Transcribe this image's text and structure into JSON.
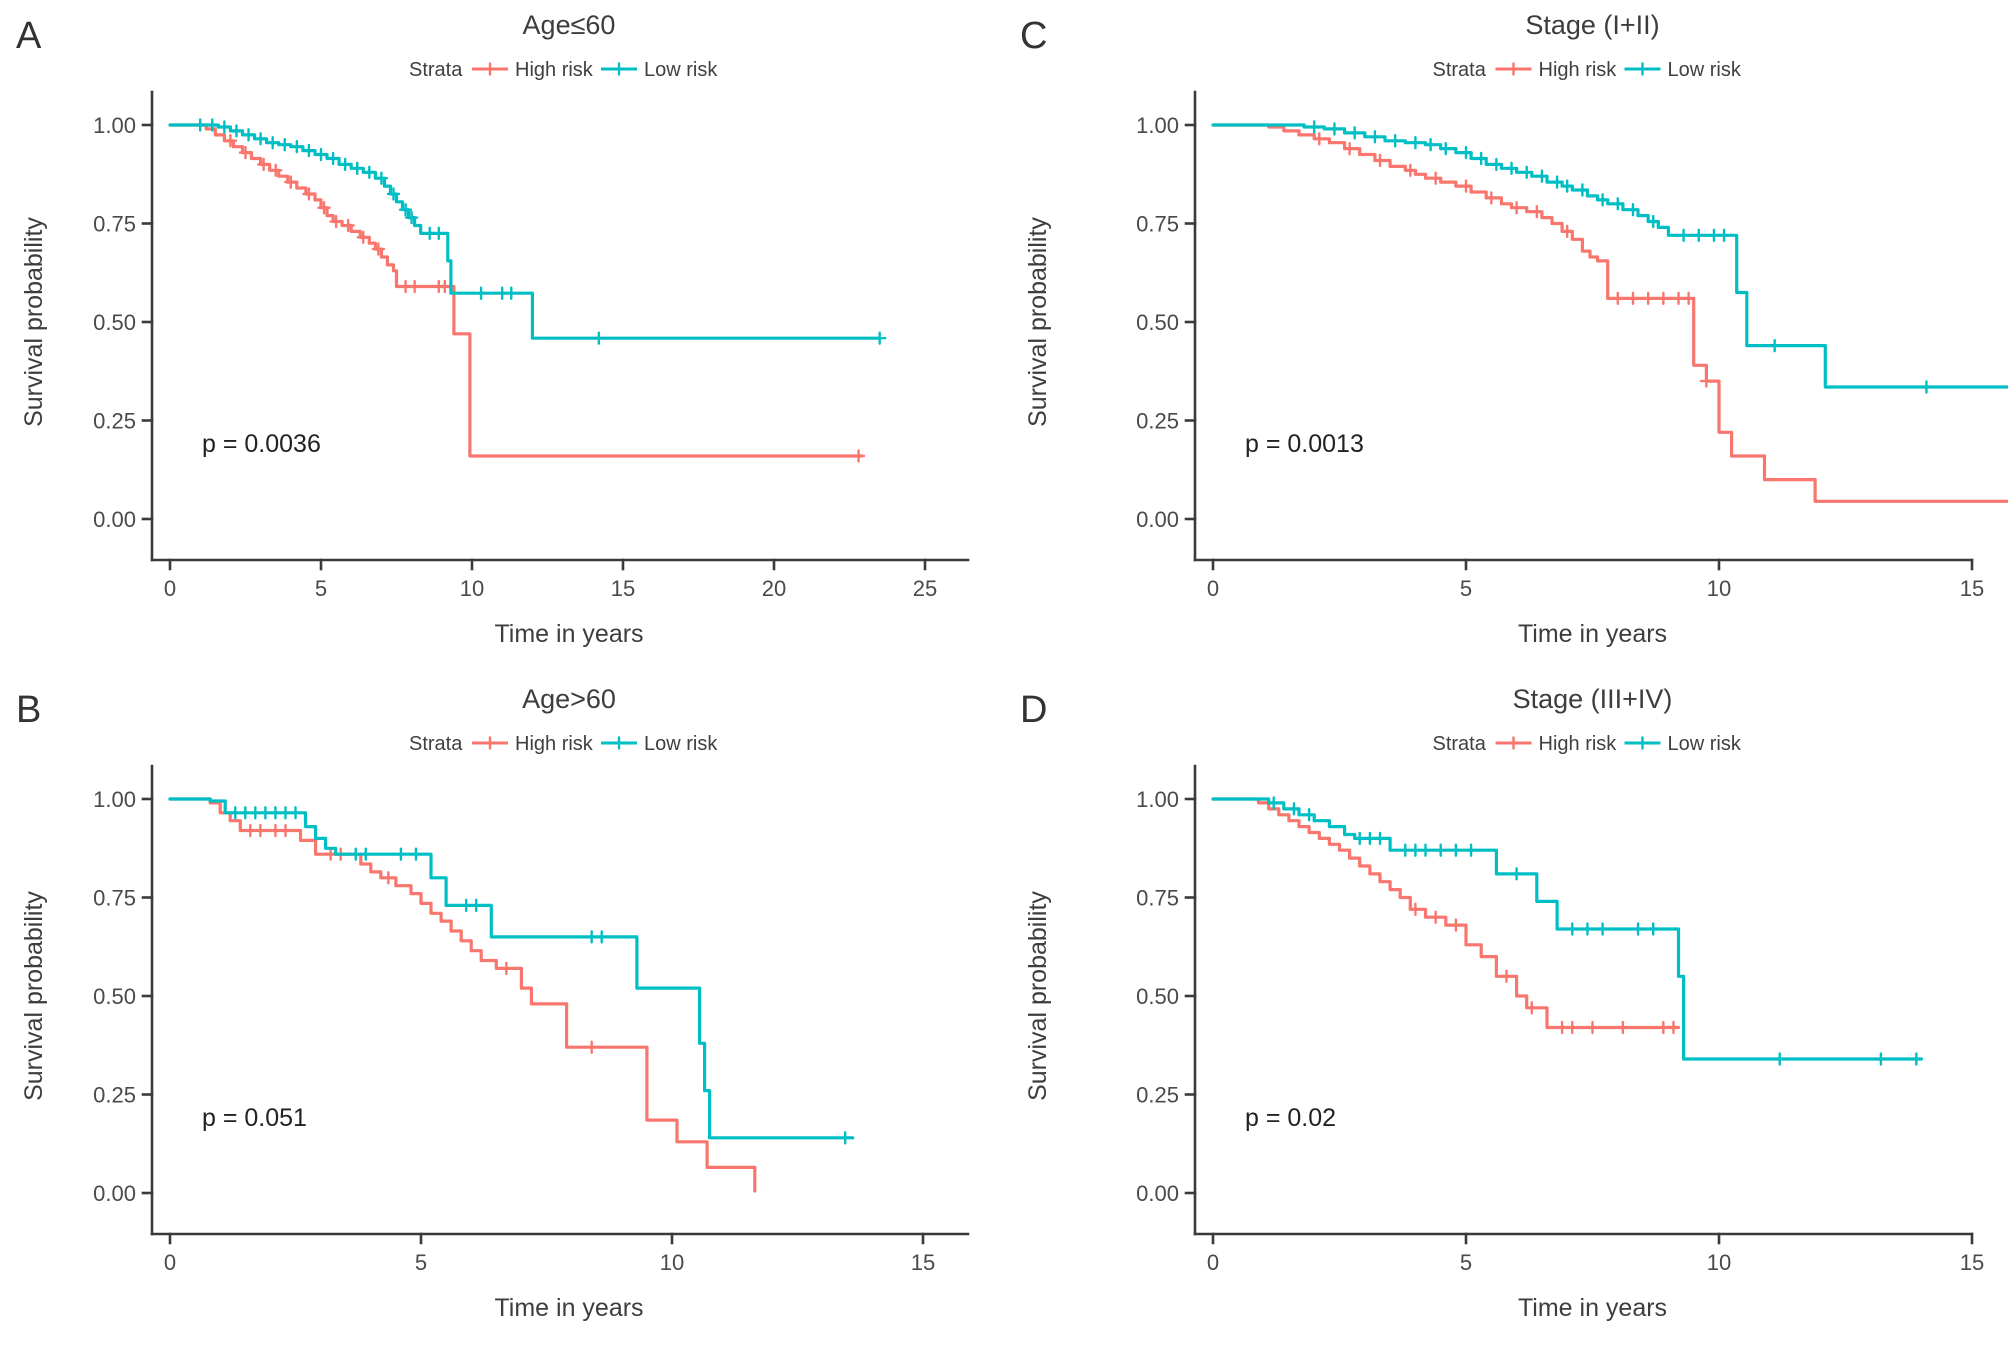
{
  "figure": {
    "background": "#ffffff",
    "strata_label": "Strata",
    "legend_items": [
      {
        "label": "High risk",
        "color": "#f8766d"
      },
      {
        "label": "Low risk",
        "color": "#00bfc4"
      }
    ],
    "axis": {
      "x_label": "Time in years",
      "y_label": "Survival probability",
      "y_ticks": [
        "1.00",
        "0.75",
        "0.50",
        "0.25",
        "0.00"
      ],
      "y_tick_values": [
        1.0,
        0.75,
        0.5,
        0.25,
        0.0
      ],
      "axis_color": "#3a3a3a",
      "text_color": "#404040",
      "tick_text_color": "#4a4a4a"
    }
  },
  "chart_data": [
    {
      "type": "line",
      "km_step": true,
      "panel_letter": "A",
      "title": "Age≤60",
      "p_value_text": "p = 0.0036",
      "x_label": "Time in years",
      "y_label": "Survival probability",
      "x_ticks": [
        0,
        5,
        10,
        15,
        20,
        25
      ],
      "xlim": [
        0,
        26
      ],
      "ylim": [
        0,
        1
      ],
      "legend_position": "top",
      "series": [
        {
          "name": "High risk",
          "color": "#f8766d",
          "steps": [
            [
              0,
              1.0
            ],
            [
              1.2,
              0.99
            ],
            [
              1.5,
              0.975
            ],
            [
              1.8,
              0.96
            ],
            [
              2.1,
              0.945
            ],
            [
              2.4,
              0.93
            ],
            [
              2.7,
              0.915
            ],
            [
              3.0,
              0.9
            ],
            [
              3.3,
              0.885
            ],
            [
              3.6,
              0.87
            ],
            [
              3.9,
              0.855
            ],
            [
              4.2,
              0.84
            ],
            [
              4.5,
              0.825
            ],
            [
              4.8,
              0.81
            ],
            [
              5.0,
              0.79
            ],
            [
              5.2,
              0.77
            ],
            [
              5.4,
              0.755
            ],
            [
              5.7,
              0.745
            ],
            [
              6.0,
              0.73
            ],
            [
              6.3,
              0.715
            ],
            [
              6.6,
              0.7
            ],
            [
              6.8,
              0.685
            ],
            [
              7.0,
              0.665
            ],
            [
              7.2,
              0.645
            ],
            [
              7.4,
              0.63
            ],
            [
              7.5,
              0.59
            ],
            [
              9.4,
              0.47
            ],
            [
              9.93,
              0.16
            ],
            [
              22.9,
              0.16
            ]
          ],
          "censor_times": [
            2.0,
            2.5,
            3.1,
            3.5,
            4.0,
            4.6,
            5.1,
            5.5,
            5.9,
            6.4,
            6.9,
            7.8,
            8.1,
            8.9,
            9.1,
            22.8
          ]
        },
        {
          "name": "Low risk",
          "color": "#00bfc4",
          "steps": [
            [
              0,
              1.0
            ],
            [
              1.6,
              0.995
            ],
            [
              2.0,
              0.985
            ],
            [
              2.4,
              0.975
            ],
            [
              2.8,
              0.965
            ],
            [
              3.2,
              0.955
            ],
            [
              3.6,
              0.95
            ],
            [
              4.0,
              0.945
            ],
            [
              4.4,
              0.935
            ],
            [
              4.8,
              0.925
            ],
            [
              5.2,
              0.915
            ],
            [
              5.6,
              0.9
            ],
            [
              6.0,
              0.89
            ],
            [
              6.4,
              0.88
            ],
            [
              6.8,
              0.865
            ],
            [
              7.1,
              0.845
            ],
            [
              7.3,
              0.825
            ],
            [
              7.5,
              0.805
            ],
            [
              7.7,
              0.785
            ],
            [
              7.9,
              0.765
            ],
            [
              8.1,
              0.745
            ],
            [
              8.3,
              0.725
            ],
            [
              9.2,
              0.655
            ],
            [
              9.3,
              0.573
            ],
            [
              12.0,
              0.459
            ],
            [
              23.5,
              0.459
            ]
          ],
          "censor_times": [
            1.0,
            1.4,
            1.8,
            2.2,
            2.6,
            3.0,
            3.4,
            3.8,
            4.2,
            4.6,
            5.0,
            5.4,
            5.8,
            6.2,
            6.6,
            7.0,
            7.4,
            7.8,
            8.0,
            8.6,
            8.9,
            10.3,
            11.0,
            11.3,
            14.2,
            23.5
          ]
        }
      ]
    },
    {
      "type": "line",
      "km_step": true,
      "panel_letter": "C",
      "title": "Stage (I+II)",
      "p_value_text": "p = 0.0013",
      "x_label": "Time in years",
      "y_label": "Survival probability",
      "x_ticks": [
        0,
        5,
        10,
        15
      ],
      "xlim": [
        0,
        15.7
      ],
      "ylim": [
        0,
        1
      ],
      "legend_position": "top",
      "series": [
        {
          "name": "High risk",
          "color": "#f8766d",
          "steps": [
            [
              0,
              1.0
            ],
            [
              1.1,
              0.995
            ],
            [
              1.4,
              0.985
            ],
            [
              1.7,
              0.975
            ],
            [
              2.0,
              0.965
            ],
            [
              2.3,
              0.955
            ],
            [
              2.6,
              0.94
            ],
            [
              2.9,
              0.925
            ],
            [
              3.2,
              0.91
            ],
            [
              3.5,
              0.895
            ],
            [
              3.8,
              0.885
            ],
            [
              4.0,
              0.875
            ],
            [
              4.2,
              0.865
            ],
            [
              4.5,
              0.855
            ],
            [
              4.8,
              0.845
            ],
            [
              5.1,
              0.83
            ],
            [
              5.4,
              0.815
            ],
            [
              5.7,
              0.8
            ],
            [
              5.9,
              0.79
            ],
            [
              6.2,
              0.78
            ],
            [
              6.5,
              0.765
            ],
            [
              6.7,
              0.75
            ],
            [
              6.9,
              0.73
            ],
            [
              7.1,
              0.71
            ],
            [
              7.3,
              0.68
            ],
            [
              7.45,
              0.665
            ],
            [
              7.6,
              0.655
            ],
            [
              7.8,
              0.56
            ],
            [
              9.5,
              0.39
            ],
            [
              9.75,
              0.35
            ],
            [
              10.0,
              0.22
            ],
            [
              10.25,
              0.16
            ],
            [
              10.9,
              0.1
            ],
            [
              11.9,
              0.045
            ],
            [
              15.7,
              0.045
            ]
          ],
          "censor_times": [
            2.1,
            2.7,
            3.3,
            3.9,
            4.4,
            5.0,
            5.5,
            6.0,
            6.4,
            7.0,
            8.0,
            8.3,
            8.6,
            8.9,
            9.2,
            9.4,
            9.75
          ]
        },
        {
          "name": "Low risk",
          "color": "#00bfc4",
          "steps": [
            [
              0,
              1.0
            ],
            [
              1.8,
              0.995
            ],
            [
              2.2,
              0.99
            ],
            [
              2.6,
              0.98
            ],
            [
              3.0,
              0.97
            ],
            [
              3.4,
              0.96
            ],
            [
              3.8,
              0.955
            ],
            [
              4.2,
              0.95
            ],
            [
              4.5,
              0.94
            ],
            [
              4.8,
              0.93
            ],
            [
              5.1,
              0.915
            ],
            [
              5.4,
              0.9
            ],
            [
              5.7,
              0.89
            ],
            [
              6.0,
              0.88
            ],
            [
              6.3,
              0.87
            ],
            [
              6.6,
              0.855
            ],
            [
              6.9,
              0.845
            ],
            [
              7.1,
              0.835
            ],
            [
              7.4,
              0.82
            ],
            [
              7.6,
              0.81
            ],
            [
              7.8,
              0.8
            ],
            [
              8.1,
              0.785
            ],
            [
              8.4,
              0.77
            ],
            [
              8.6,
              0.755
            ],
            [
              8.8,
              0.74
            ],
            [
              9.0,
              0.72
            ],
            [
              10.35,
              0.575
            ],
            [
              10.55,
              0.44
            ],
            [
              12.1,
              0.335
            ],
            [
              15.7,
              0.335
            ]
          ],
          "censor_times": [
            2.0,
            2.4,
            2.8,
            3.2,
            3.6,
            4.0,
            4.3,
            4.6,
            5.0,
            5.3,
            5.6,
            5.9,
            6.2,
            6.5,
            6.8,
            7.0,
            7.3,
            7.7,
            8.0,
            8.3,
            8.7,
            9.3,
            9.6,
            9.9,
            10.1,
            11.1,
            14.1
          ]
        }
      ]
    },
    {
      "type": "line",
      "km_step": true,
      "panel_letter": "B",
      "title": "Age>60",
      "p_value_text": "p = 0.051",
      "x_label": "Time in years",
      "y_label": "Survival probability",
      "x_ticks": [
        0,
        5,
        10,
        15
      ],
      "xlim": [
        0,
        15.8
      ],
      "ylim": [
        0,
        1
      ],
      "legend_position": "top",
      "series": [
        {
          "name": "High risk",
          "color": "#f8766d",
          "steps": [
            [
              0,
              1.0
            ],
            [
              0.8,
              0.99
            ],
            [
              1.0,
              0.965
            ],
            [
              1.2,
              0.945
            ],
            [
              1.4,
              0.92
            ],
            [
              2.6,
              0.895
            ],
            [
              2.9,
              0.86
            ],
            [
              3.8,
              0.835
            ],
            [
              4.0,
              0.815
            ],
            [
              4.2,
              0.8
            ],
            [
              4.5,
              0.78
            ],
            [
              4.8,
              0.76
            ],
            [
              5.0,
              0.735
            ],
            [
              5.2,
              0.71
            ],
            [
              5.4,
              0.69
            ],
            [
              5.6,
              0.665
            ],
            [
              5.8,
              0.64
            ],
            [
              6.0,
              0.615
            ],
            [
              6.2,
              0.59
            ],
            [
              6.5,
              0.57
            ],
            [
              7.0,
              0.52
            ],
            [
              7.2,
              0.48
            ],
            [
              7.9,
              0.37
            ],
            [
              9.5,
              0.185
            ],
            [
              10.1,
              0.13
            ],
            [
              10.7,
              0.065
            ],
            [
              11.65,
              0.005
            ]
          ],
          "censor_times": [
            1.6,
            1.8,
            2.1,
            2.3,
            3.2,
            3.4,
            4.35,
            6.7,
            8.4
          ]
        },
        {
          "name": "Low risk",
          "color": "#00bfc4",
          "steps": [
            [
              0,
              1.0
            ],
            [
              0.8,
              0.995
            ],
            [
              1.1,
              0.965
            ],
            [
              2.7,
              0.93
            ],
            [
              2.9,
              0.9
            ],
            [
              3.1,
              0.875
            ],
            [
              3.3,
              0.86
            ],
            [
              5.2,
              0.8
            ],
            [
              5.5,
              0.73
            ],
            [
              6.4,
              0.65
            ],
            [
              9.3,
              0.52
            ],
            [
              10.55,
              0.38
            ],
            [
              10.65,
              0.26
            ],
            [
              10.75,
              0.14
            ],
            [
              13.6,
              0.14
            ]
          ],
          "censor_times": [
            1.3,
            1.5,
            1.7,
            1.9,
            2.1,
            2.3,
            2.5,
            3.7,
            3.9,
            4.6,
            4.9,
            5.9,
            6.1,
            8.4,
            8.6,
            13.45
          ]
        }
      ]
    },
    {
      "type": "line",
      "km_step": true,
      "panel_letter": "D",
      "title": "Stage (III+IV)",
      "p_value_text": "p = 0.02",
      "x_label": "Time in years",
      "y_label": "Survival probability",
      "x_ticks": [
        0,
        5,
        10,
        15
      ],
      "xlim": [
        0,
        15.7
      ],
      "ylim": [
        0,
        1
      ],
      "legend_position": "top",
      "series": [
        {
          "name": "High risk",
          "color": "#f8766d",
          "steps": [
            [
              0,
              1.0
            ],
            [
              0.9,
              0.99
            ],
            [
              1.1,
              0.975
            ],
            [
              1.3,
              0.96
            ],
            [
              1.5,
              0.945
            ],
            [
              1.7,
              0.93
            ],
            [
              1.9,
              0.915
            ],
            [
              2.1,
              0.9
            ],
            [
              2.3,
              0.885
            ],
            [
              2.5,
              0.87
            ],
            [
              2.7,
              0.85
            ],
            [
              2.9,
              0.83
            ],
            [
              3.1,
              0.81
            ],
            [
              3.3,
              0.79
            ],
            [
              3.5,
              0.77
            ],
            [
              3.7,
              0.75
            ],
            [
              3.9,
              0.72
            ],
            [
              4.2,
              0.7
            ],
            [
              4.6,
              0.68
            ],
            [
              5.0,
              0.63
            ],
            [
              5.3,
              0.6
            ],
            [
              5.6,
              0.55
            ],
            [
              6.0,
              0.5
            ],
            [
              6.2,
              0.47
            ],
            [
              6.6,
              0.42
            ],
            [
              9.2,
              0.42
            ]
          ],
          "censor_times": [
            4.0,
            4.4,
            4.8,
            5.8,
            6.3,
            6.9,
            7.1,
            7.5,
            8.1,
            8.9,
            9.1
          ]
        },
        {
          "name": "Low risk",
          "color": "#00bfc4",
          "steps": [
            [
              0,
              1.0
            ],
            [
              1.1,
              0.99
            ],
            [
              1.4,
              0.975
            ],
            [
              1.7,
              0.96
            ],
            [
              2.0,
              0.945
            ],
            [
              2.3,
              0.93
            ],
            [
              2.6,
              0.91
            ],
            [
              2.8,
              0.9
            ],
            [
              3.5,
              0.87
            ],
            [
              5.6,
              0.81
            ],
            [
              6.4,
              0.74
            ],
            [
              6.8,
              0.67
            ],
            [
              9.2,
              0.55
            ],
            [
              9.3,
              0.34
            ],
            [
              14.0,
              0.34
            ]
          ],
          "censor_times": [
            1.2,
            1.6,
            1.9,
            2.9,
            3.1,
            3.3,
            3.8,
            4.0,
            4.2,
            4.5,
            4.8,
            5.1,
            6.0,
            7.1,
            7.4,
            7.7,
            8.4,
            8.7,
            11.2,
            13.2,
            13.9
          ]
        }
      ]
    }
  ]
}
